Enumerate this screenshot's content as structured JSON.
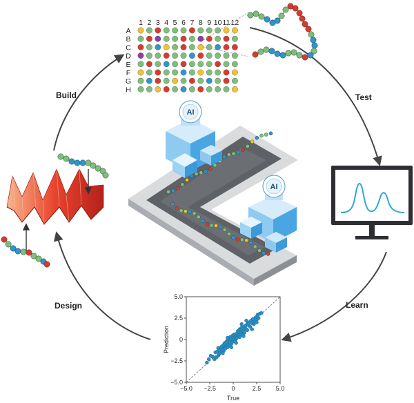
{
  "cycle": {
    "stages": {
      "build": "Build",
      "test": "Test",
      "learn": "Learn",
      "design": "Design"
    }
  },
  "plate": {
    "columns": [
      "1",
      "2",
      "3",
      "4",
      "5",
      "6",
      "7",
      "8",
      "9",
      "10",
      "11",
      "12"
    ],
    "rows": [
      "A",
      "B",
      "C",
      "D",
      "E",
      "F",
      "G",
      "H"
    ],
    "well_colors": {
      "Y": "#f1c232",
      "G": "#7dc07a",
      "R": "#d93a2e",
      "B": "#2a97cf",
      "P": "#8d3fa0"
    },
    "wells": [
      "YGRGGGRGGGYY",
      "GRPGGRGPRGRG",
      "RGBYGRGYGBRR",
      "PGGRGGBRGGGG",
      "GRGBGRGGGRGG",
      "YGRGGBGYGGRY",
      "GBRGYGRGBGRG",
      "GGYRGBGRGGGY"
    ]
  },
  "factory": {
    "ai_label_1": "AI",
    "ai_label_2": "AI"
  },
  "monitor": {
    "screen_icon": "chromatogram-two-peaks",
    "line_color": "#2aa8d6"
  },
  "chart_data": {
    "type": "scatter",
    "xlabel": "True",
    "ylabel": "Prediction",
    "xlim": [
      -5.0,
      5.0
    ],
    "ylim": [
      -5.0,
      5.0
    ],
    "xticks": [
      "−5.0",
      "−2.5",
      "0",
      "2.5",
      "5.0"
    ],
    "yticks": [
      "5.0",
      "2.5",
      "0",
      "−2.5",
      "−5.0"
    ],
    "diagonal": "dashed y = x",
    "point_color": "#2a8fc4",
    "series": [
      {
        "x": [
          -2.8,
          -2.6,
          -2.2,
          -2.0,
          -1.9,
          -1.8,
          -1.7,
          -1.6,
          -1.5,
          -1.5,
          -1.4,
          -1.3,
          -1.2,
          -1.2,
          -1.1,
          -1.0,
          -1.0,
          -0.9,
          -0.9,
          -0.8,
          -0.8,
          -0.7,
          -0.7,
          -0.6,
          -0.6,
          -0.5,
          -0.5,
          -0.4,
          -0.4,
          -0.3,
          -0.3,
          -0.2,
          -0.2,
          -0.1,
          -0.1,
          0.0,
          0.0,
          0.1,
          0.1,
          0.2,
          0.2,
          0.3,
          0.3,
          0.4,
          0.4,
          0.5,
          0.5,
          0.6,
          0.6,
          0.7,
          0.7,
          0.8,
          0.8,
          0.9,
          0.9,
          1.0,
          1.0,
          1.1,
          1.2,
          1.2,
          1.3,
          1.4,
          1.5,
          1.5,
          1.6,
          1.7,
          1.8,
          1.9,
          2.0,
          2.1,
          2.2,
          2.3,
          2.4,
          2.5,
          2.6,
          2.7,
          2.8,
          3.0,
          -1.6,
          -1.1,
          -0.6,
          0.3,
          0.9,
          1.4,
          2.0,
          -2.4,
          -0.2,
          1.1,
          2.5
        ],
        "y": [
          -2.7,
          -2.3,
          -2.0,
          -2.3,
          -1.5,
          -2.1,
          -1.4,
          -1.9,
          -1.2,
          -1.7,
          -1.5,
          -0.9,
          -1.4,
          -0.8,
          -1.1,
          -0.6,
          -1.3,
          -0.9,
          -0.4,
          -1.0,
          -0.5,
          -0.8,
          -0.2,
          -0.9,
          -0.3,
          -0.6,
          0.0,
          -0.7,
          -0.1,
          -0.2,
          0.3,
          -0.5,
          0.1,
          -0.3,
          0.4,
          -0.1,
          0.5,
          0.0,
          0.6,
          0.3,
          -0.2,
          0.5,
          0.1,
          0.7,
          0.2,
          0.4,
          1.0,
          0.6,
          0.9,
          0.3,
          1.2,
          0.8,
          1.1,
          0.6,
          1.4,
          0.9,
          1.3,
          1.0,
          1.5,
          0.8,
          1.6,
          1.2,
          1.8,
          1.1,
          1.7,
          2.0,
          1.5,
          2.2,
          1.9,
          2.4,
          1.8,
          2.1,
          2.6,
          2.3,
          2.9,
          2.5,
          3.0,
          3.1,
          -1.0,
          -1.6,
          0.2,
          -0.4,
          1.8,
          2.2,
          1.2,
          -1.9,
          -0.9,
          0.4,
          2.0
        ]
      }
    ]
  }
}
